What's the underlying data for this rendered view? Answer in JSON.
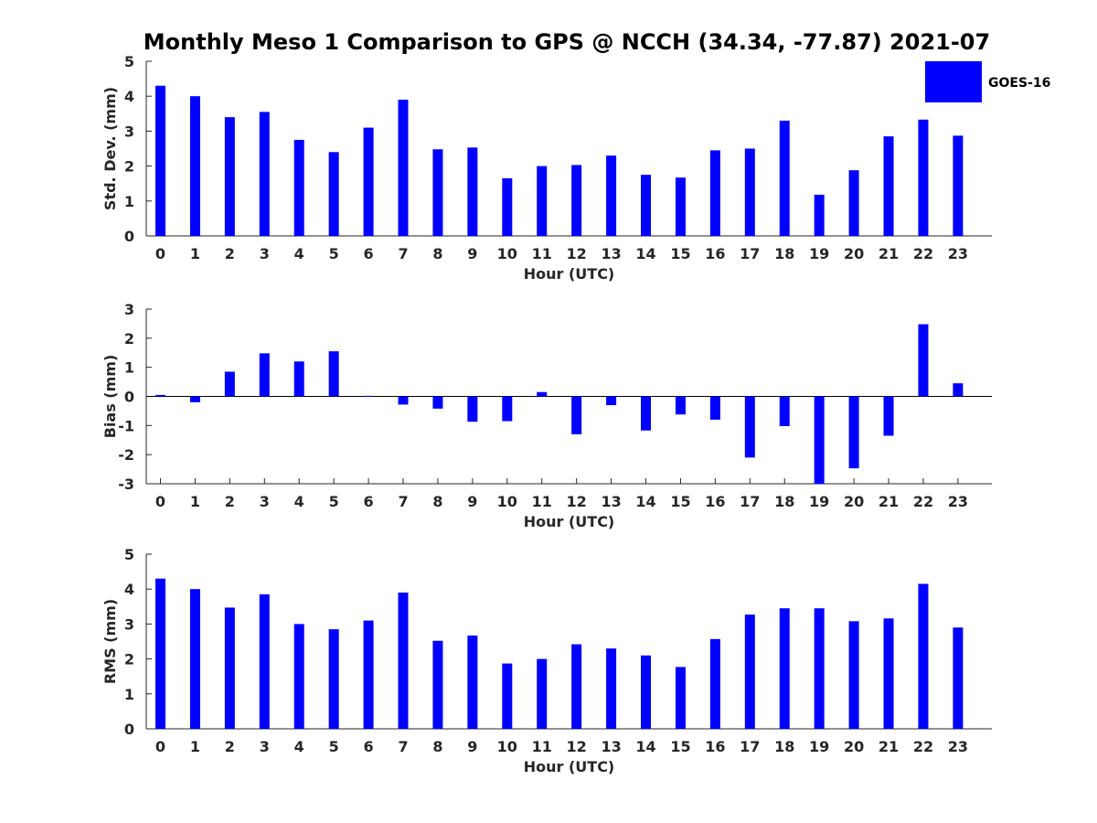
{
  "title": "Monthly Meso 1 Comparison to GPS @ NCCH (34.34, -77.87) 2021-07",
  "legend": {
    "label": "GOES-16",
    "color": "#0000ff"
  },
  "chart_data": [
    {
      "type": "bar",
      "xlabel": "Hour (UTC)",
      "ylabel": "Std. Dev. (mm)",
      "ylim": [
        0,
        5
      ],
      "yticks": [
        "0",
        "1",
        "2",
        "3",
        "4",
        "5"
      ],
      "categories": [
        "0",
        "1",
        "2",
        "3",
        "4",
        "5",
        "6",
        "7",
        "8",
        "9",
        "10",
        "11",
        "12",
        "13",
        "14",
        "15",
        "16",
        "17",
        "18",
        "19",
        "20",
        "21",
        "22",
        "23"
      ],
      "series": [
        {
          "name": "GOES-16",
          "values": [
            4.3,
            4.0,
            3.4,
            3.55,
            2.75,
            2.4,
            3.1,
            3.9,
            2.48,
            2.53,
            1.65,
            2.0,
            2.03,
            2.3,
            1.75,
            1.67,
            2.45,
            2.5,
            3.3,
            1.18,
            1.88,
            2.85,
            3.33,
            2.87
          ]
        }
      ]
    },
    {
      "type": "bar",
      "xlabel": "Hour (UTC)",
      "ylabel": "Bias (mm)",
      "ylim": [
        -3,
        3
      ],
      "yticks": [
        "-3",
        "-2",
        "-1",
        "0",
        "1",
        "2",
        "3"
      ],
      "categories": [
        "0",
        "1",
        "2",
        "3",
        "4",
        "5",
        "6",
        "7",
        "8",
        "9",
        "10",
        "11",
        "12",
        "13",
        "14",
        "15",
        "16",
        "17",
        "18",
        "19",
        "20",
        "21",
        "22",
        "23"
      ],
      "series": [
        {
          "name": "GOES-16",
          "values": [
            0.05,
            -0.2,
            0.85,
            1.48,
            1.2,
            1.55,
            0.02,
            -0.28,
            -0.42,
            -0.87,
            -0.85,
            0.15,
            -1.3,
            -0.3,
            -1.17,
            -0.62,
            -0.8,
            -2.1,
            -1.02,
            -3.0,
            -2.47,
            -1.35,
            2.48,
            0.45
          ]
        }
      ]
    },
    {
      "type": "bar",
      "xlabel": "Hour (UTC)",
      "ylabel": "RMS (mm)",
      "ylim": [
        0,
        5
      ],
      "yticks": [
        "0",
        "1",
        "2",
        "3",
        "4",
        "5"
      ],
      "categories": [
        "0",
        "1",
        "2",
        "3",
        "4",
        "5",
        "6",
        "7",
        "8",
        "9",
        "10",
        "11",
        "12",
        "13",
        "14",
        "15",
        "16",
        "17",
        "18",
        "19",
        "20",
        "21",
        "22",
        "23"
      ],
      "series": [
        {
          "name": "GOES-16",
          "values": [
            4.3,
            4.0,
            3.47,
            3.85,
            3.0,
            2.85,
            3.1,
            3.9,
            2.52,
            2.67,
            1.87,
            2.0,
            2.42,
            2.3,
            2.1,
            1.77,
            2.57,
            3.27,
            3.45,
            3.45,
            3.08,
            3.16,
            4.15,
            2.9
          ]
        }
      ]
    }
  ]
}
